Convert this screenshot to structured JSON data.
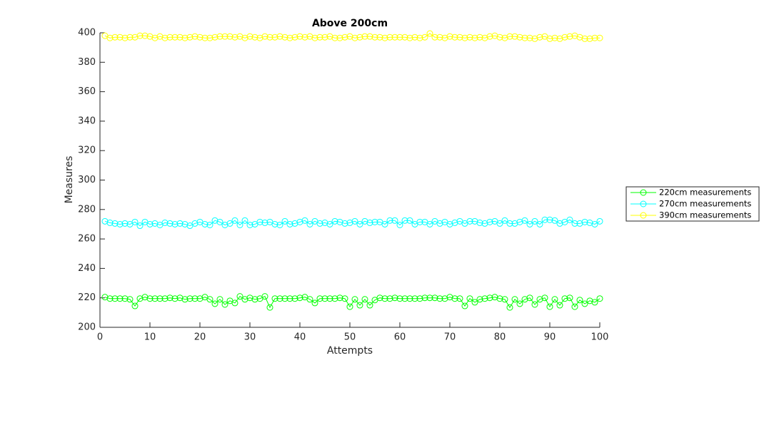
{
  "chart_data": {
    "type": "line",
    "title": "Above 200cm",
    "xlabel": "Attempts",
    "ylabel": "Measures",
    "x": [
      1,
      2,
      3,
      4,
      5,
      6,
      7,
      8,
      9,
      10,
      11,
      12,
      13,
      14,
      15,
      16,
      17,
      18,
      19,
      20,
      21,
      22,
      23,
      24,
      25,
      26,
      27,
      28,
      29,
      30,
      31,
      32,
      33,
      34,
      35,
      36,
      37,
      38,
      39,
      40,
      41,
      42,
      43,
      44,
      45,
      46,
      47,
      48,
      49,
      50,
      51,
      52,
      53,
      54,
      55,
      56,
      57,
      58,
      59,
      60,
      61,
      62,
      63,
      64,
      65,
      66,
      67,
      68,
      69,
      70,
      71,
      72,
      73,
      74,
      75,
      76,
      77,
      78,
      79,
      80,
      81,
      82,
      83,
      84,
      85,
      86,
      87,
      88,
      89,
      90,
      91,
      92,
      93,
      94,
      95,
      96,
      97,
      98,
      99,
      100
    ],
    "series": [
      {
        "name": "220cm measurements",
        "color": "#00ff00",
        "values": [
          220.5,
          219.5,
          219.5,
          219.5,
          219.5,
          219,
          214.5,
          219.5,
          220.5,
          219.5,
          219.5,
          219.5,
          219.5,
          220,
          219.5,
          220,
          219,
          219.5,
          219.5,
          219.5,
          220.5,
          219,
          216,
          219,
          215.5,
          218,
          216.5,
          221,
          219,
          220,
          219,
          219.5,
          221,
          213.5,
          219.5,
          219.5,
          219.5,
          219.5,
          219.5,
          220,
          220.5,
          219,
          216.5,
          219.5,
          219.5,
          219.5,
          219.5,
          220,
          219.5,
          214,
          219,
          215,
          219,
          215,
          218.5,
          220,
          219.5,
          219.5,
          220,
          219.5,
          219.5,
          219.5,
          219.5,
          219.5,
          220,
          220,
          220,
          219.5,
          219.5,
          220.5,
          219.5,
          219.5,
          214.5,
          219.5,
          217,
          219,
          219.5,
          220,
          220.5,
          219.5,
          219,
          213.5,
          219,
          216,
          219,
          220,
          215.5,
          219,
          220,
          214,
          219,
          215,
          219.5,
          220,
          214,
          218.5,
          216,
          218,
          217,
          219.5
        ]
      },
      {
        "name": "270cm measurements",
        "color": "#00ffff",
        "values": [
          272,
          271,
          270.5,
          270,
          270.5,
          270,
          271.5,
          269,
          271.5,
          270,
          270.5,
          269.5,
          271,
          270.5,
          270,
          270.5,
          270,
          269,
          270.5,
          271.5,
          270,
          269.5,
          272.5,
          271.5,
          269.5,
          270.5,
          272.5,
          269.5,
          272.5,
          269.5,
          270,
          271.5,
          271,
          271.5,
          270,
          269.5,
          272,
          270,
          270.5,
          271.5,
          272.5,
          270,
          272,
          270.5,
          271,
          270,
          272,
          271.5,
          270.5,
          271,
          272,
          270,
          272,
          271,
          271.5,
          271.5,
          270,
          272.5,
          272.5,
          269.5,
          272.5,
          272.5,
          270,
          271.5,
          271.5,
          270,
          272,
          270.5,
          271.5,
          270,
          271,
          272,
          270.5,
          272,
          272,
          271,
          270.5,
          271.5,
          272,
          270.5,
          272.5,
          270.5,
          270.5,
          271.5,
          272.5,
          270,
          272,
          270,
          273,
          273,
          272.5,
          270.5,
          271.5,
          273,
          270.5,
          270.5,
          271.5,
          271,
          270,
          272
        ]
      },
      {
        "name": "390cm measurements",
        "color": "#ffff00",
        "values": [
          398,
          396.5,
          397,
          397,
          396.5,
          397,
          397,
          398,
          398,
          397.5,
          396.5,
          397.5,
          396.5,
          397,
          397,
          397,
          396.5,
          397,
          397.5,
          397,
          396.5,
          396.5,
          397,
          397.5,
          397.5,
          397.5,
          397,
          397.5,
          396.5,
          397.5,
          397,
          396.5,
          397.5,
          397,
          397,
          397.5,
          397,
          396.5,
          397,
          397.5,
          397,
          397.5,
          396.5,
          397,
          397,
          397.5,
          396.5,
          396.5,
          397,
          397.5,
          396.5,
          397,
          397.5,
          397.5,
          397,
          397,
          396.5,
          397,
          397,
          397,
          397,
          396.5,
          397,
          396.5,
          397,
          399.5,
          397,
          397,
          396.5,
          397.5,
          397,
          397,
          396.5,
          397,
          396.5,
          397,
          396.5,
          397.5,
          398,
          397,
          396.5,
          397.5,
          397.5,
          397,
          396.5,
          396.5,
          396,
          397,
          397.5,
          396,
          396.5,
          396,
          397,
          397.5,
          398,
          397,
          396,
          396,
          396.5,
          396.5
        ]
      }
    ],
    "xlim": [
      0,
      100
    ],
    "xticks": [
      0,
      10,
      20,
      30,
      40,
      50,
      60,
      70,
      80,
      90,
      100
    ],
    "ylim": [
      200,
      400
    ],
    "yticks": [
      200,
      220,
      240,
      260,
      280,
      300,
      320,
      340,
      360,
      380,
      400
    ],
    "legend": "outside right"
  }
}
